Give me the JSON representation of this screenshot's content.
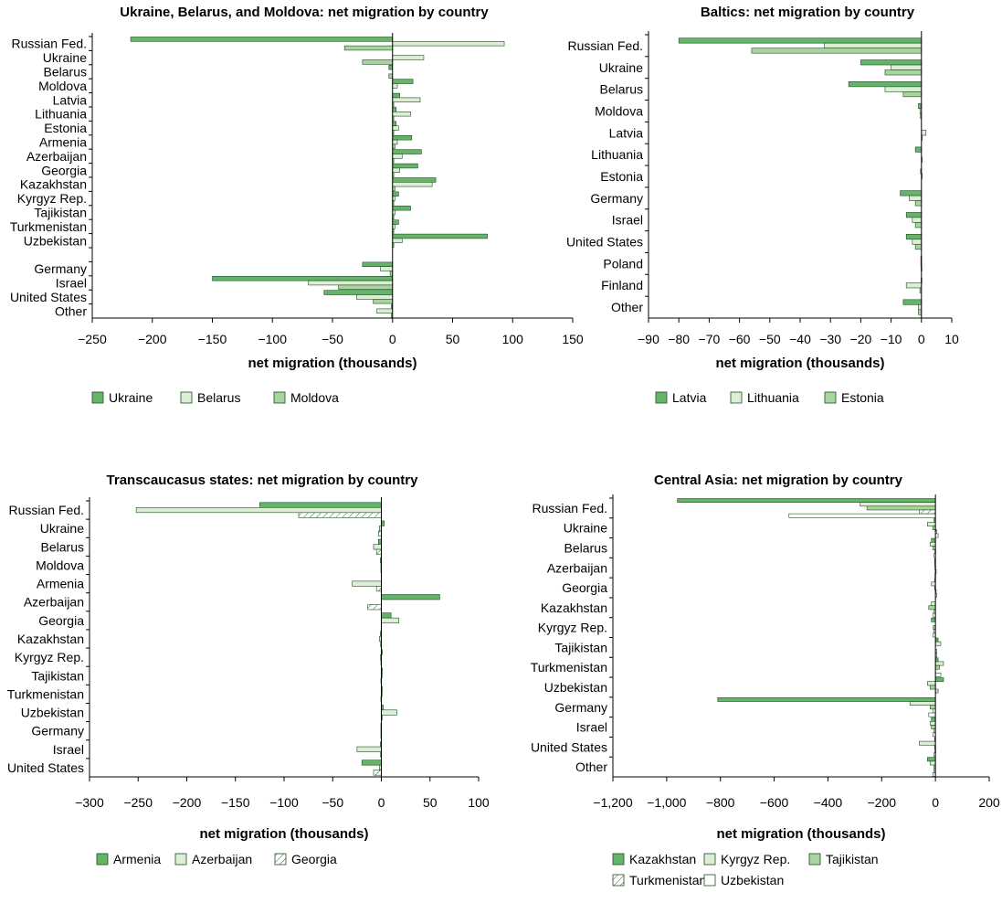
{
  "colors": {
    "dark_green": "#66b36a",
    "light_green": "#dcefd5",
    "mid_green": "#a9d49e",
    "white": "#ffffff"
  },
  "chart_data": [
    {
      "type": "bar",
      "orientation": "horizontal",
      "title": "Ukraine, Belarus, and Moldova: net migration by country",
      "xlabel": "net migration (thousands)",
      "ylabel": "",
      "xlim": [
        -250,
        150
      ],
      "xticks": [
        -250,
        -200,
        -150,
        -100,
        -50,
        0,
        50,
        100,
        150
      ],
      "tick_labels": [
        "−250",
        "−200",
        "−150",
        "−100",
        "−50",
        "0",
        "50",
        "100",
        "150"
      ],
      "legend": "bottom",
      "categories": [
        "Russian Fed.",
        "Ukraine",
        "Belarus",
        "Moldova",
        "Latvia",
        "Lithuania",
        "Estonia",
        "Armenia",
        "Azerbaijan",
        "Georgia",
        "Kazakhstan",
        "Kyrgyz Rep.",
        "Tajikistan",
        "Turkmenistan",
        "Uzbekistan",
        "",
        "Germany",
        "Israel",
        "United States",
        "Other"
      ],
      "series": [
        {
          "name": "Ukraine",
          "style": "dark",
          "values": [
            -218,
            null,
            -3,
            17,
            6,
            3,
            3,
            16,
            24,
            21,
            36,
            5,
            15,
            5,
            79,
            null,
            -25,
            -150,
            -57,
            -1
          ]
        },
        {
          "name": "Belarus",
          "style": "light",
          "values": [
            93,
            26,
            null,
            4,
            23,
            15,
            5,
            4,
            8,
            6,
            33,
            2,
            2,
            2,
            8,
            null,
            -10,
            -70,
            -30,
            -13
          ]
        },
        {
          "name": "Moldova",
          "style": "mid",
          "values": [
            -40,
            -25,
            -3,
            null,
            1,
            1,
            1,
            2,
            1,
            1,
            2,
            1,
            1,
            1,
            1,
            null,
            -2,
            -45,
            -16,
            -1
          ]
        }
      ]
    },
    {
      "type": "bar",
      "orientation": "horizontal",
      "title": "Baltics: net migration by country",
      "xlabel": "net migration (thousands)",
      "ylabel": "",
      "xlim": [
        -90,
        10
      ],
      "xticks": [
        -90,
        -80,
        -70,
        -60,
        -50,
        -40,
        -30,
        -20,
        -10,
        0,
        10
      ],
      "tick_labels": [
        "−90",
        "−80",
        "−70",
        "−60",
        "−50",
        "−40",
        "−30",
        "−20",
        "−10",
        "0",
        "10"
      ],
      "legend": "bottom",
      "categories": [
        "Russian Fed.",
        "Ukraine",
        "Belarus",
        "Moldova",
        "Latvia",
        "Lithuania",
        "Estonia",
        "Germany",
        "Israel",
        "United States",
        "Poland",
        "Finland",
        "Other"
      ],
      "series": [
        {
          "name": "Latvia",
          "style": "dark",
          "values": [
            -80,
            -20,
            -24,
            -1,
            null,
            -2,
            -0.3,
            -7,
            -5,
            -5,
            -0.2,
            -0.1,
            -6
          ]
        },
        {
          "name": "Lithuania",
          "style": "light",
          "values": [
            -32,
            -10,
            -12,
            -0.5,
            1.5,
            null,
            0.2,
            -4,
            -3,
            -3,
            -0.2,
            -5,
            -1
          ]
        },
        {
          "name": "Estonia",
          "style": "mid",
          "values": [
            -56,
            -12,
            -6,
            -0.3,
            0.2,
            0.2,
            null,
            -2,
            -2,
            -2,
            -0.1,
            -0.5,
            -1
          ]
        }
      ]
    },
    {
      "type": "bar",
      "orientation": "horizontal",
      "title": "Transcaucasus states: net migration by country",
      "xlabel": "net migration (thousands)",
      "ylabel": "",
      "xlim": [
        -300,
        100
      ],
      "xticks": [
        -300,
        -250,
        -200,
        -150,
        -100,
        -50,
        0,
        50,
        100
      ],
      "tick_labels": [
        "−300",
        "−250",
        "−200",
        "−150",
        "−100",
        "−50",
        "0",
        "50",
        "100"
      ],
      "legend": "bottom",
      "categories": [
        "Russian Fed.",
        "Ukraine",
        "Belarus",
        "Moldova",
        "Armenia",
        "Azerbaijan",
        "Georgia",
        "Kazakhstan",
        "Kyrgyz Rep.",
        "Tajikistan",
        "Turkmenistan",
        "Uzbekistan",
        "Germany",
        "Israel",
        "United States"
      ],
      "series": [
        {
          "name": "Armenia",
          "style": "dark",
          "values": [
            -125,
            3,
            -3,
            -1,
            null,
            60,
            10,
            -1,
            1,
            1,
            1,
            2,
            -0.5,
            -1,
            -20
          ]
        },
        {
          "name": "Azerbaijan",
          "style": "light",
          "values": [
            -252,
            -2,
            -8,
            -0.5,
            -30,
            null,
            18,
            -2,
            -1,
            0.5,
            0.5,
            16,
            -0.5,
            -25,
            -2
          ]
        },
        {
          "name": "Georgia",
          "style": "hatch",
          "values": [
            -85,
            -3,
            -5,
            -0.5,
            -5,
            -14,
            null,
            -1,
            -0.5,
            -0.5,
            -0.5,
            1,
            -0.5,
            -1,
            -8
          ]
        }
      ]
    },
    {
      "type": "bar",
      "orientation": "horizontal",
      "title": "Central Asia: net migration by country",
      "xlabel": "net migration (thousands)",
      "ylabel": "",
      "xlim": [
        -1200,
        200
      ],
      "xticks": [
        -1200,
        -1000,
        -800,
        -600,
        -400,
        -200,
        0,
        200
      ],
      "tick_labels": [
        "−1,200",
        "−1,000",
        "−800",
        "−600",
        "−400",
        "−200",
        "0",
        "200"
      ],
      "legend": "bottom",
      "categories": [
        "Russian Fed.",
        "Ukraine",
        "Belarus",
        "Azerbaijan",
        "Georgia",
        "Kazakhstan",
        "Kyrgyz Rep.",
        "Tajikistan",
        "Turkmenistan",
        "Uzbekistan",
        "Germany",
        "Israel",
        "United States",
        "Other"
      ],
      "series": [
        {
          "name": "Kazakhstan",
          "style": "dark",
          "values": [
            -960,
            -5,
            -15,
            -3,
            -3,
            null,
            -15,
            10,
            10,
            30,
            -810,
            -15,
            -3,
            -30
          ]
        },
        {
          "name": "Kyrgyz Rep.",
          "style": "light",
          "values": [
            -280,
            -30,
            -20,
            -3,
            -15,
            -15,
            null,
            20,
            30,
            -30,
            -95,
            -20,
            -60,
            -20
          ]
        },
        {
          "name": "Tajikistan",
          "style": "mid",
          "values": [
            -255,
            -10,
            -10,
            -2,
            -3,
            -25,
            -8,
            null,
            15,
            -20,
            -20,
            -15,
            -3,
            -5
          ]
        },
        {
          "name": "Turkmenistan",
          "style": "hatch",
          "values": [
            -60,
            5,
            -2,
            2,
            2,
            -5,
            -5,
            5,
            null,
            10,
            -10,
            -5,
            -2,
            -5
          ]
        },
        {
          "name": "Uzbekistan",
          "style": "white",
          "values": [
            -545,
            10,
            -5,
            -2,
            5,
            -10,
            -10,
            5,
            20,
            null,
            -25,
            -10,
            -5,
            -10
          ]
        }
      ]
    }
  ]
}
